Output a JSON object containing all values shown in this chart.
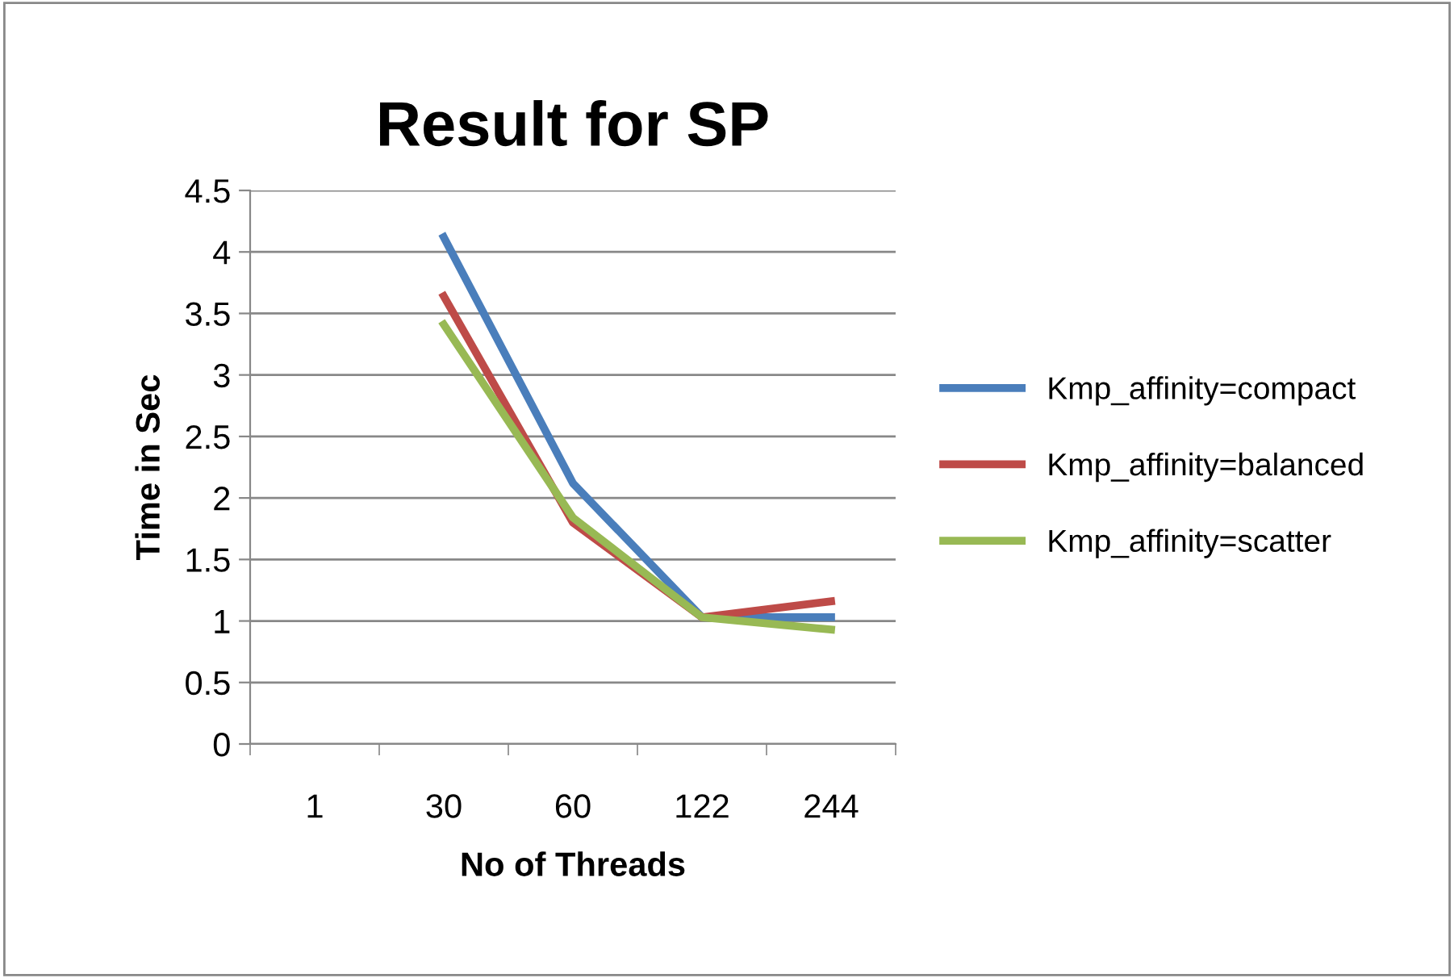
{
  "chart_data": {
    "type": "line",
    "title": "Result for SP",
    "xlabel": "No of Threads",
    "ylabel": "Time in Sec",
    "categories": [
      "1",
      "30",
      "60",
      "122",
      "244"
    ],
    "series": [
      {
        "name": "Kmp_affinity=compact",
        "color": "#4a7ebb",
        "values": [
          null,
          4.12,
          2.12,
          1.03,
          1.03
        ]
      },
      {
        "name": "Kmp_affinity=balanced",
        "color": "#be4b48",
        "values": [
          null,
          3.64,
          1.8,
          1.03,
          1.16
        ]
      },
      {
        "name": "Kmp_affinity=scatter",
        "color": "#98b954",
        "values": [
          null,
          3.41,
          1.84,
          1.03,
          0.93
        ]
      }
    ],
    "ylim": [
      0,
      4.5
    ],
    "yticks": [
      0,
      0.5,
      1,
      1.5,
      2,
      2.5,
      3,
      3.5,
      4,
      4.5
    ],
    "grid": "y",
    "legend": "right",
    "marker": "none",
    "line_style": "solid"
  }
}
